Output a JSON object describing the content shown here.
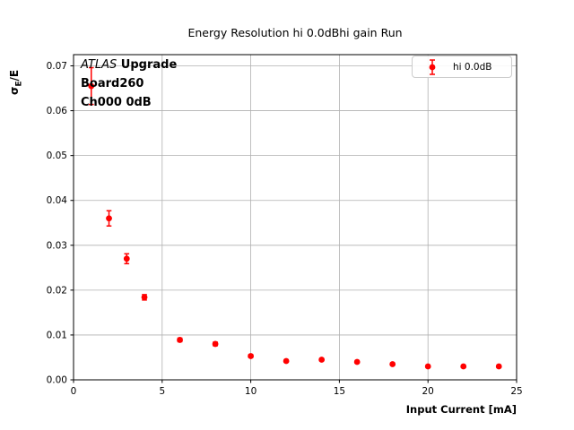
{
  "figure": {
    "title": "Energy Resolution hi 0.0dBhi gain Run",
    "xlabel": "Input Current [mA]",
    "ylabel": {
      "sigma": "σ",
      "sub": "E",
      "rest": "/E"
    },
    "annotation": {
      "line1_italic": "ATLAS",
      "line1_bold": " Upgrade",
      "line2": "Board260",
      "line3": "Ch000 0dB"
    },
    "legend": {
      "label": "hi 0.0dB"
    }
  },
  "colors": {
    "series": "#ff0000",
    "grid": "#b0b0b0",
    "spine": "#000000",
    "legend_border": "#cccccc"
  },
  "chart_data": {
    "type": "scatter",
    "title": "Energy Resolution hi 0.0dBhi gain Run",
    "xlabel": "Input Current [mA]",
    "ylabel": "σ_E/E",
    "xlim": [
      0,
      25
    ],
    "ylim": [
      0,
      0.0725
    ],
    "xticks": [
      0,
      5,
      10,
      15,
      20,
      25
    ],
    "yticks": [
      0.0,
      0.01,
      0.02,
      0.03,
      0.04,
      0.05,
      0.06,
      0.07
    ],
    "grid": true,
    "legend_position": "upper right",
    "series": [
      {
        "name": "hi 0.0dB",
        "color": "#ff0000",
        "marker": "o",
        "x": [
          1,
          2,
          3,
          4,
          6,
          8,
          10,
          12,
          14,
          16,
          18,
          20,
          22,
          24
        ],
        "y": [
          0.0655,
          0.036,
          0.027,
          0.0184,
          0.0089,
          0.008,
          0.0053,
          0.0042,
          0.0045,
          0.004,
          0.0035,
          0.003,
          0.003,
          0.003
        ],
        "yerr": [
          0.0041,
          0.0017,
          0.0011,
          0.0006,
          0.0004,
          0.0004,
          0.0003,
          0.0002,
          0.0002,
          0.0002,
          0.0002,
          0.0002,
          0.0002,
          0.0002
        ]
      }
    ]
  }
}
